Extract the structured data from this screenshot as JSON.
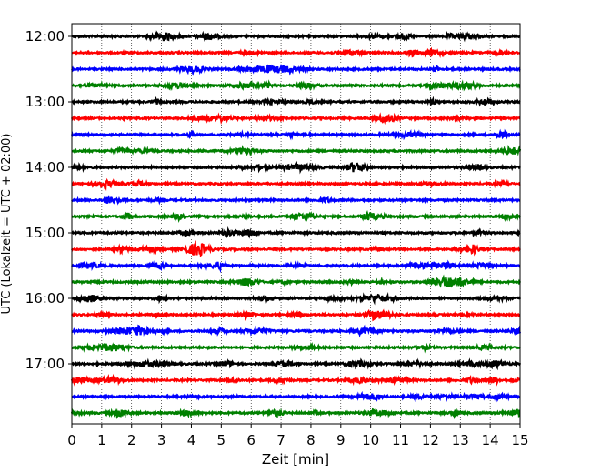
{
  "chart_data": {
    "type": "line",
    "title": "",
    "xlabel": "Zeit  [min]",
    "ylabel": "UTC (Lokalzeit = UTC + 02:00)",
    "xlim": [
      0,
      15
    ],
    "x_ticks": [
      "0",
      "1",
      "2",
      "3",
      "4",
      "5",
      "6",
      "7",
      "8",
      "9",
      "10",
      "11",
      "12",
      "13",
      "14",
      "15"
    ],
    "y_ticks": [
      "12:00",
      "13:00",
      "14:00",
      "15:00",
      "16:00",
      "17:00"
    ],
    "grid": "vertical-dotted",
    "colors": [
      "#000000",
      "#ff0000",
      "#0000ff",
      "#008000"
    ],
    "traces": [
      {
        "time": "12:00",
        "color": "#000000"
      },
      {
        "time": "12:15",
        "color": "#ff0000"
      },
      {
        "time": "12:30",
        "color": "#0000ff"
      },
      {
        "time": "12:45",
        "color": "#008000"
      },
      {
        "time": "13:00",
        "color": "#000000"
      },
      {
        "time": "13:15",
        "color": "#ff0000"
      },
      {
        "time": "13:30",
        "color": "#0000ff"
      },
      {
        "time": "13:45",
        "color": "#008000"
      },
      {
        "time": "14:00",
        "color": "#000000"
      },
      {
        "time": "14:15",
        "color": "#ff0000"
      },
      {
        "time": "14:30",
        "color": "#0000ff"
      },
      {
        "time": "14:45",
        "color": "#008000"
      },
      {
        "time": "15:00",
        "color": "#000000"
      },
      {
        "time": "15:15",
        "color": "#ff0000"
      },
      {
        "time": "15:30",
        "color": "#0000ff"
      },
      {
        "time": "15:45",
        "color": "#008000"
      },
      {
        "time": "16:00",
        "color": "#000000"
      },
      {
        "time": "16:15",
        "color": "#ff0000"
      },
      {
        "time": "16:30",
        "color": "#0000ff"
      },
      {
        "time": "16:45",
        "color": "#008000"
      },
      {
        "time": "17:00",
        "color": "#000000"
      },
      {
        "time": "17:15",
        "color": "#ff0000"
      },
      {
        "time": "17:30",
        "color": "#0000ff"
      },
      {
        "time": "17:45",
        "color": "#008000"
      }
    ]
  }
}
